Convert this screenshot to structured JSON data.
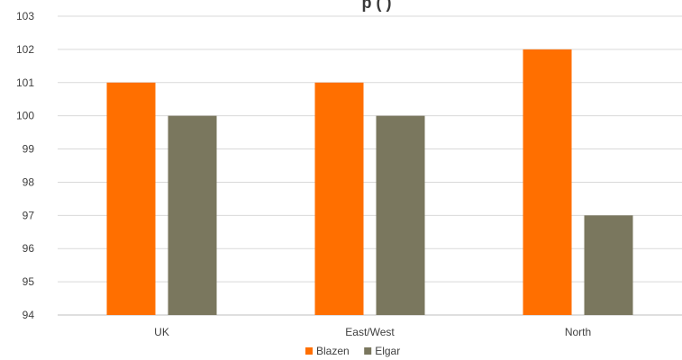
{
  "chart_data": {
    "type": "bar",
    "title": "",
    "title_visible_fragment": "p (       )",
    "categories": [
      "UK",
      "East/West",
      "North"
    ],
    "series": [
      {
        "name": "Blazen",
        "values": [
          101,
          101,
          102
        ],
        "color": "#ff6f00"
      },
      {
        "name": "Elgar",
        "values": [
          100,
          100,
          97
        ],
        "color": "#7a775e"
      }
    ],
    "ylim": [
      94,
      103
    ],
    "yticks": [
      "94",
      "95",
      "96",
      "97",
      "98",
      "99",
      "100",
      "101",
      "102",
      "103"
    ],
    "grid": true,
    "legend_position": "bottom"
  }
}
